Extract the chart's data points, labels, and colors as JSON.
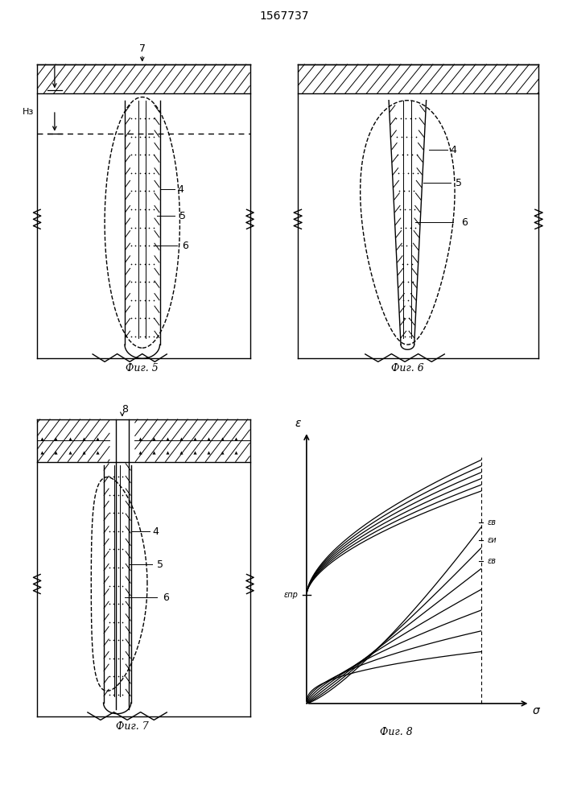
{
  "title": "1567737",
  "title_fontsize": 10,
  "fig5_label": "Фиг. 5",
  "fig6_label": "Фиг. 6",
  "fig7_label": "Фиг. 7",
  "fig8_label": "Фиг. 8",
  "label_4": "4",
  "label_5": "5",
  "label_6": "6",
  "label_7": "7",
  "label_8": "8",
  "label_H3": "Hз",
  "label_eps": "ε",
  "label_sigma": "σ",
  "label_eps_pr": "εпр",
  "label_ev": "εв",
  "label_eu": "εи",
  "label_eb": "εв",
  "bg_color": "white"
}
